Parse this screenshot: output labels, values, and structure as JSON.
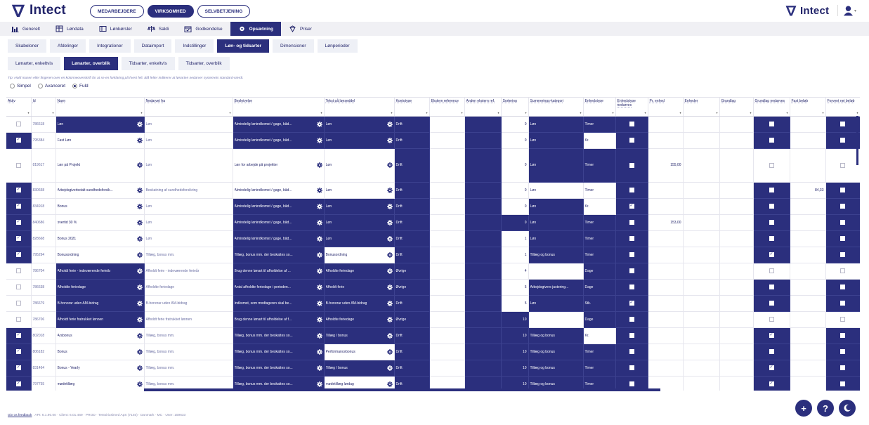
{
  "app": {
    "name": "Intect",
    "modules": [
      "MEDARBEJDERE",
      "VIRKSOMHED",
      "SELVBETJENING"
    ],
    "active_module": 1
  },
  "nav1": [
    {
      "label": "Generelt",
      "icon": "chart-bar-icon"
    },
    {
      "label": "Løndata",
      "icon": "grid-calc-icon"
    },
    {
      "label": "Lønkørsler",
      "icon": "window-icon"
    },
    {
      "label": "Saldi",
      "icon": "scales-icon"
    },
    {
      "label": "Godkendelse",
      "icon": "calendar-check-icon"
    },
    {
      "label": "Opsætning",
      "icon": "gear-icon",
      "active": true
    },
    {
      "label": "Priser",
      "icon": "diamond-icon"
    }
  ],
  "nav2": [
    {
      "label": "Skabeloner"
    },
    {
      "label": "Afdelinger"
    },
    {
      "label": "Integrationer"
    },
    {
      "label": "Dataimport"
    },
    {
      "label": "Indstillinger"
    },
    {
      "label": "Løn- og tidsarter",
      "active": true
    },
    {
      "label": "Dimensioner"
    },
    {
      "label": "Lønperioder"
    }
  ],
  "nav3": [
    {
      "label": "Lønarter, enkeltvis"
    },
    {
      "label": "Lønarter, overblik",
      "active": true
    },
    {
      "label": "Tidsarter, enkeltvis"
    },
    {
      "label": "Tidsarter, overblik"
    }
  ],
  "tip": "Tip: Hold musen eller fingeren over en kolonneoverskrift for at se en forklaring på hvert felt. Blå felter indikerer at lønarten nedarver systemets standard-værdi.",
  "view_options": [
    "Simpel",
    "Avanceret",
    "Fuld"
  ],
  "view_selected": 2,
  "columns": [
    "Aktiv",
    "Id",
    "Navn",
    "Nedarvet fra",
    "Beskrivelse",
    "Tekst på lønseddel",
    "Kontotype",
    "Ekstern reference",
    "Anden ekstern ref.",
    "Sortering",
    "Summerings-kategori",
    "Enhedstype",
    "Enhedstype nedarves",
    "Pr. enhed",
    "Enheder",
    "Grundlag",
    "Grundlag nedarves",
    "Fast beløb",
    "Forvent nej beløb"
  ],
  "rows": [
    {
      "aktiv": false,
      "id": "786618",
      "navn": "Løn",
      "nedarvet": "Løn",
      "beskrivelse": "Almindelig lønindkomst / gage, båd...",
      "tekst": "Løn",
      "konto": "Drift",
      "sort": "0",
      "sum": "Løn",
      "enhed": "Timer",
      "en_nedarv": false,
      "pr": "",
      "grund_nedarv": false,
      "fast": "",
      "forvent": false,
      "dark": [
        "navn",
        "beskrivelse",
        "tekst",
        "konto",
        "ekst2",
        "sum",
        "enhed",
        "en_nedarv",
        "grund_nedarv",
        "forvent"
      ]
    },
    {
      "aktiv": true,
      "id": "795384",
      "navn": "Fast Løn",
      "nedarvet": "Løn",
      "beskrivelse": "Almindelig lønindkomst / gage, båd...",
      "tekst": "Løn",
      "konto": "Drift",
      "sort": "0",
      "sum": "Løn",
      "enhed": "Kr.",
      "en_nedarv": false,
      "pr": "",
      "grund_nedarv": false,
      "fast": "",
      "forvent": false,
      "dark": [
        "aktiv",
        "beskrivelse",
        "tekst",
        "konto",
        "ekst2",
        "sum",
        "en_nedarv",
        "grund_nedarv",
        "forvent"
      ]
    },
    {
      "aktiv": false,
      "id": "819617",
      "navn": "Løn på Projekt",
      "nedarvet": "Løn",
      "beskrivelse": "Løn for arbejde på projekter",
      "tekst": "Løn",
      "konto": "Drift",
      "sort": "0",
      "sum": "Løn",
      "enhed": "Timer",
      "en_nedarv": false,
      "pr": "155,00",
      "grund_nedarv": false,
      "fast": "",
      "forvent": false,
      "tall": true,
      "dark": [
        "konto",
        "ekst2",
        "sum",
        "enhed",
        "en_nedarv"
      ]
    },
    {
      "aktiv": true,
      "id": "830658",
      "navn": "Arbejdsgiverbetalt sundhedsforsik...",
      "nedarvet": "Beskatning af sundhedsforsikring",
      "beskrivelse": "Almindelig lønindkomst / gage, båd...",
      "tekst": "Løn",
      "konto": "Drift",
      "sort": "0",
      "sum": "Løn",
      "enhed": "Timer",
      "en_nedarv": false,
      "pr": "",
      "grund_nedarv": false,
      "fast": "84,33",
      "forvent": false,
      "dark": [
        "aktiv",
        "konto",
        "ekst2",
        "en_nedarv",
        "grund_nedarv",
        "forvent"
      ]
    },
    {
      "aktiv": true,
      "id": "834918",
      "navn": "Bonus",
      "nedarvet": "Løn",
      "beskrivelse": "Almindelig lønindkomst / gage, båd...",
      "tekst": "Løn",
      "konto": "Drift",
      "sort": "0",
      "sum": "Løn",
      "enhed": "Kr.",
      "en_nedarv": true,
      "pr": "",
      "grund_nedarv": false,
      "fast": "",
      "forvent": false,
      "dark": [
        "aktiv",
        "beskrivelse",
        "tekst",
        "konto",
        "ekst2",
        "sum",
        "en_nedarv",
        "grund_nedarv",
        "forvent"
      ]
    },
    {
      "aktiv": true,
      "id": "840686",
      "navn": "overtid 30 %",
      "nedarvet": "Løn",
      "beskrivelse": "Almindelig lønindkomst / gage, båd...",
      "tekst": "Løn",
      "konto": "Drift",
      "sort": "0",
      "sum": "Løn",
      "enhed": "Timer",
      "en_nedarv": false,
      "pr": "153,00",
      "grund_nedarv": false,
      "fast": "",
      "forvent": false,
      "dark": [
        "aktiv",
        "beskrivelse",
        "tekst",
        "konto",
        "ekst2",
        "sort",
        "sum",
        "enhed",
        "en_nedarv",
        "grund_nedarv",
        "forvent"
      ]
    },
    {
      "aktiv": true,
      "id": "828668",
      "navn": "Bonus 2021",
      "nedarvet": "Løn",
      "beskrivelse": "Almindelig lønindkomst / gage, båd...",
      "tekst": "Løn",
      "konto": "Drift",
      "sort": "1",
      "sum": "Løn",
      "enhed": "Timer",
      "en_nedarv": false,
      "pr": "",
      "grund_nedarv": false,
      "fast": "",
      "forvent": false,
      "dark": [
        "aktiv",
        "beskrivelse",
        "tekst",
        "konto",
        "ekst2",
        "sum",
        "enhed",
        "en_nedarv",
        "grund_nedarv",
        "forvent"
      ]
    },
    {
      "aktiv": true,
      "id": "795294",
      "navn": "Bonusordning",
      "nedarvet": "Tillæg, bonus mm.",
      "beskrivelse": "Tillæg, bonus mm. der beskattes so...",
      "tekst": "Bonusordning",
      "konto": "Drift",
      "sort": "1",
      "sum": "Tillæg og bonus",
      "enhed": "Timer",
      "en_nedarv": false,
      "pr": "",
      "grund_nedarv": true,
      "fast": "",
      "forvent": false,
      "dark": [
        "aktiv",
        "beskrivelse",
        "konto",
        "ekst2",
        "sum",
        "enhed",
        "en_nedarv",
        "grund_nedarv",
        "forvent"
      ]
    },
    {
      "aktiv": false,
      "id": "786704",
      "navn": "Afholdt ferie - indeværende ferieår",
      "nedarvet": "Afholdt ferie - indeværende ferieår",
      "beskrivelse": "Brug denne lønart til afholdelse af ...",
      "tekst": "Afholdte feriedage",
      "konto": "Øvrige",
      "sort": "4",
      "sum": "",
      "enhed": "Dage",
      "en_nedarv": false,
      "pr": "",
      "grund_nedarv": false,
      "fast": "",
      "forvent": false,
      "dark": [
        "navn",
        "beskrivelse",
        "tekst",
        "konto",
        "ekst2",
        "enhed",
        "en_nedarv"
      ]
    },
    {
      "aktiv": false,
      "id": "786638",
      "navn": "Afholdte feriedage",
      "nedarvet": "Afholdte feriedage",
      "beskrivelse": "Antal afholdte feriedage i perioden...",
      "tekst": "Afholdt ferie",
      "konto": "Øvrige",
      "sort": "5",
      "sum": "Arbejdsgivers justering...",
      "enhed": "Dage",
      "en_nedarv": false,
      "pr": "",
      "grund_nedarv": false,
      "fast": "",
      "forvent": false,
      "dark": [
        "navn",
        "beskrivelse",
        "tekst",
        "konto",
        "ekst2",
        "sum",
        "enhed",
        "en_nedarv",
        "grund_nedarv",
        "forvent"
      ]
    },
    {
      "aktiv": false,
      "id": "786679",
      "navn": "B-honorar uden AM-bidrag",
      "nedarvet": "B-honorar uden AM-bidrag",
      "beskrivelse": "Indkomst, som modtageren skal be...",
      "tekst": "B-honorar uden AM-bidrag",
      "konto": "Drift",
      "sort": "5",
      "sum": "Løn",
      "enhed": "Stk.",
      "en_nedarv": true,
      "pr": "",
      "grund_nedarv": false,
      "fast": "",
      "forvent": false,
      "dark": [
        "navn",
        "beskrivelse",
        "tekst",
        "konto",
        "ekst2",
        "sum",
        "enhed",
        "en_nedarv",
        "grund_nedarv",
        "forvent"
      ]
    },
    {
      "aktiv": false,
      "id": "786706",
      "navn": "Afholdt ferie fratrukket lønnen",
      "nedarvet": "Afholdt ferie fratrukket lønnen",
      "beskrivelse": "Brug denne lønart til afholdelse af f...",
      "tekst": "Afholdte feriedage",
      "konto": "Øvrige",
      "sort": "10",
      "sum": "",
      "enhed": "Dage",
      "en_nedarv": false,
      "pr": "",
      "grund_nedarv": false,
      "fast": "",
      "forvent": false,
      "dark": [
        "navn",
        "beskrivelse",
        "tekst",
        "konto",
        "ekst2",
        "sort",
        "enhed",
        "en_nedarv"
      ]
    },
    {
      "aktiv": true,
      "id": "802018",
      "navn": "Årsbonus",
      "nedarvet": "Tillæg, bonus mm.",
      "beskrivelse": "Tillæg, bonus mm. der beskattes so...",
      "tekst": "Tillæg / bonus",
      "konto": "Drift",
      "sort": "10",
      "sum": "Tillæg og bonus",
      "enhed": "Kr.",
      "en_nedarv": false,
      "pr": "",
      "grund_nedarv": true,
      "fast": "",
      "forvent": false,
      "dark": [
        "aktiv",
        "beskrivelse",
        "tekst",
        "konto",
        "ekst2",
        "sort",
        "sum",
        "en_nedarv",
        "grund_nedarv",
        "forvent"
      ]
    },
    {
      "aktiv": true,
      "id": "806182",
      "navn": "Bonus",
      "nedarvet": "Tillæg, bonus mm.",
      "beskrivelse": "Tillæg, bonus mm. der beskattes so...",
      "tekst": "Performancebonus",
      "konto": "Drift",
      "sort": "10",
      "sum": "Tillæg og bonus",
      "enhed": "Timer",
      "en_nedarv": false,
      "pr": "",
      "grund_nedarv": false,
      "fast": "",
      "forvent": false,
      "dark": [
        "aktiv",
        "beskrivelse",
        "konto",
        "ekst2",
        "sort",
        "sum",
        "enhed",
        "en_nedarv",
        "grund_nedarv",
        "forvent"
      ]
    },
    {
      "aktiv": true,
      "id": "831464",
      "navn": "Bonus - Yearly",
      "nedarvet": "Tillæg, bonus mm.",
      "beskrivelse": "Tillæg, bonus mm. der beskattes so...",
      "tekst": "Tillæg / bonus",
      "konto": "Drift",
      "sort": "10",
      "sum": "Tillæg og bonus",
      "enhed": "Timer",
      "en_nedarv": false,
      "pr": "",
      "grund_nedarv": true,
      "fast": "",
      "forvent": false,
      "dark": [
        "aktiv",
        "beskrivelse",
        "tekst",
        "konto",
        "ekst2",
        "sort",
        "sum",
        "enhed",
        "en_nedarv",
        "grund_nedarv",
        "forvent"
      ]
    },
    {
      "aktiv": true,
      "id": "797755",
      "navn": "mødetillæg",
      "nedarvet": "Tillæg, bonus mm.",
      "beskrivelse": "Tillæg, bonus mm. der beskattes so...",
      "tekst": "mødetillæg lørdag",
      "konto": "Drift",
      "sort": "10",
      "sum": "Tillæg og bonus",
      "enhed": "Timer",
      "en_nedarv": false,
      "pr": "",
      "grund_nedarv": true,
      "fast": "",
      "forvent": false,
      "dark": [
        "aktiv",
        "beskrivelse",
        "konto",
        "ekst2",
        "sort",
        "sum",
        "enhed",
        "en_nedarv",
        "grund_nedarv",
        "forvent"
      ]
    }
  ],
  "footer": {
    "feedback": "Giv os feedback",
    "info": "API: 6.1.90.00 · Client: 6.01.469 · PROD · Testsiriusimed ApS (7145) · Danmark · MC · User: 159633"
  },
  "fabs": [
    {
      "label": "+",
      "icon": "plus-icon"
    },
    {
      "label": "?",
      "icon": "help-icon"
    },
    {
      "label": "",
      "icon": "moon-icon"
    }
  ],
  "colors": {
    "primary": "#2b2f7d",
    "bg_light": "#eef0f6"
  }
}
